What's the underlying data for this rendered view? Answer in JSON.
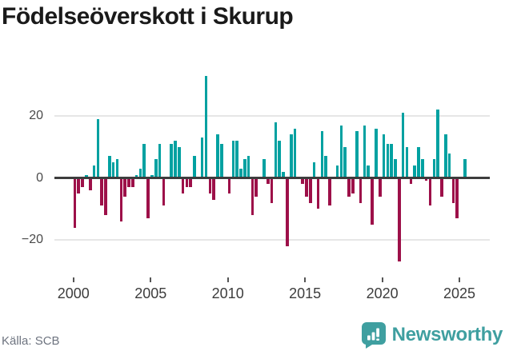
{
  "header": {
    "title": "Födelseöverskott i Skurup"
  },
  "footer": {
    "source": "Källa: SCB",
    "brand": "Newsworthy",
    "brand_color": "#3f9fa0",
    "brand_icon": "bar-chart-speech-bubble"
  },
  "chart_data": {
    "type": "bar",
    "title": "Födelseöverskott i Skurup",
    "xlabel": "",
    "ylabel": "",
    "legend": "none",
    "grid": "horizontal",
    "ylim": [
      -33,
      34
    ],
    "positive_color": "#00a1a1",
    "negative_color": "#9d1049",
    "y_ticks": [
      20,
      0,
      -20
    ],
    "y_tick_labels": [
      "20",
      "0",
      "−20"
    ],
    "x_tick_years": [
      2000,
      2005,
      2010,
      2015,
      2020,
      2025
    ],
    "x_tick_labels": [
      "2000",
      "2005",
      "2010",
      "2015",
      "2020",
      "2025"
    ],
    "x": [
      "2000Q1",
      "2000Q2",
      "2000Q3",
      "2000Q4",
      "2001Q1",
      "2001Q2",
      "2001Q3",
      "2001Q4",
      "2002Q1",
      "2002Q2",
      "2002Q3",
      "2002Q4",
      "2003Q1",
      "2003Q2",
      "2003Q3",
      "2003Q4",
      "2004Q1",
      "2004Q2",
      "2004Q3",
      "2004Q4",
      "2005Q1",
      "2005Q2",
      "2005Q3",
      "2005Q4",
      "2006Q1",
      "2006Q2",
      "2006Q3",
      "2006Q4",
      "2007Q1",
      "2007Q2",
      "2007Q3",
      "2007Q4",
      "2008Q1",
      "2008Q2",
      "2008Q3",
      "2008Q4",
      "2009Q1",
      "2009Q2",
      "2009Q3",
      "2009Q4",
      "2010Q1",
      "2010Q2",
      "2010Q3",
      "2010Q4",
      "2011Q1",
      "2011Q2",
      "2011Q3",
      "2011Q4",
      "2012Q1",
      "2012Q2",
      "2012Q3",
      "2012Q4",
      "2013Q1",
      "2013Q2",
      "2013Q3",
      "2013Q4",
      "2014Q1",
      "2014Q2",
      "2014Q3",
      "2014Q4",
      "2015Q1",
      "2015Q2",
      "2015Q3",
      "2015Q4",
      "2016Q1",
      "2016Q2",
      "2016Q3",
      "2016Q4",
      "2017Q1",
      "2017Q2",
      "2017Q3",
      "2017Q4",
      "2018Q1",
      "2018Q2",
      "2018Q3",
      "2018Q4",
      "2019Q1",
      "2019Q2",
      "2019Q3",
      "2019Q4",
      "2020Q1",
      "2020Q2",
      "2020Q3",
      "2020Q4",
      "2021Q1",
      "2021Q2",
      "2021Q3",
      "2021Q4",
      "2022Q1",
      "2022Q2",
      "2022Q3",
      "2022Q4",
      "2023Q1",
      "2023Q2",
      "2023Q3",
      "2023Q4",
      "2024Q1",
      "2024Q2",
      "2024Q3",
      "2024Q4",
      "2025Q1",
      "2025Q2"
    ],
    "values": [
      -16,
      -5,
      -3,
      1,
      -4,
      4,
      19,
      -9,
      -12,
      7,
      5,
      6,
      -14,
      -6,
      -3,
      -3,
      1,
      3,
      11,
      -13,
      1,
      6,
      11,
      -9,
      0,
      11,
      12,
      10,
      -5,
      -3,
      -3,
      7,
      0,
      13,
      33,
      -5,
      -7,
      14,
      11,
      0,
      -5,
      12,
      12,
      3,
      6,
      7,
      -12,
      -6,
      0,
      6,
      -2,
      -8,
      18,
      12,
      2,
      -22,
      14,
      16,
      0,
      -2,
      -6,
      -8,
      5,
      -10,
      15,
      7,
      -9,
      0,
      4,
      17,
      10,
      -6,
      -5,
      15,
      -8,
      17,
      4,
      -15,
      16,
      -6,
      14,
      11,
      11,
      6,
      -27,
      21,
      10,
      -2,
      4,
      10,
      6,
      -1,
      -9,
      6,
      22,
      -6,
      14,
      8,
      -8,
      -13,
      0,
      6
    ]
  }
}
